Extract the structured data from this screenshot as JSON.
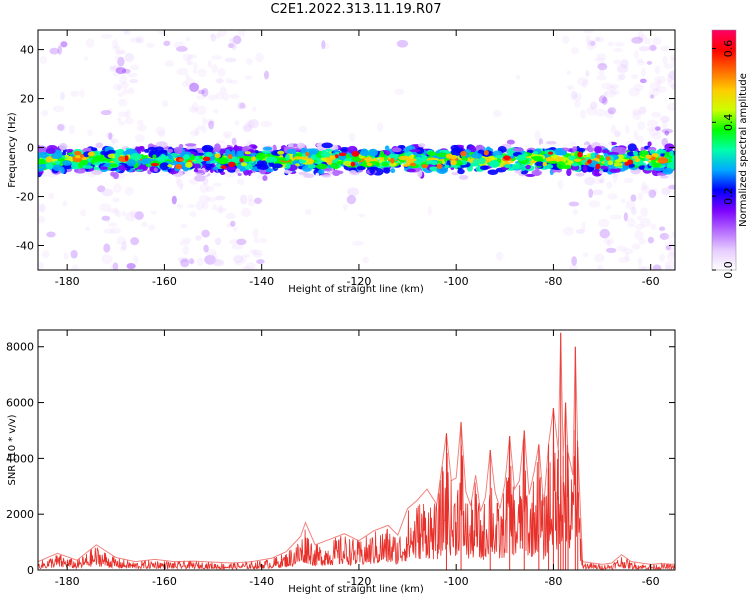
{
  "title": "C2E1.2022.313.11.19.R07",
  "chart_data": [
    {
      "type": "heatmap",
      "xlabel": "Height of straight line (km)",
      "ylabel": "Frequency (Hz)",
      "xlim": [
        -186,
        -55
      ],
      "ylim": [
        -50,
        48
      ],
      "x_ticks": [
        -180,
        -160,
        -140,
        -120,
        -100,
        -80,
        -60
      ],
      "y_ticks": [
        -40,
        -20,
        0,
        20,
        40
      ],
      "grid": false,
      "colorbar": {
        "label": "Normalized spectral amplitude",
        "range": [
          0,
          0.65
        ],
        "ticks": [
          0.0,
          0.2,
          0.4,
          0.6
        ],
        "colors": [
          "#ffffff",
          "#e6ccff",
          "#b366ff",
          "#7a00ff",
          "#0000ff",
          "#00aaff",
          "#00ffaa",
          "#00ff00",
          "#ccff00",
          "#ffcc00",
          "#ff6600",
          "#ff0000",
          "#ff0066"
        ]
      },
      "band": {
        "center_frequency_hz": -5,
        "half_width_hz": 6
      }
    },
    {
      "type": "line",
      "xlabel": "Height of straight line (km)",
      "ylabel": "SNR (10 * v/v)",
      "xlim": [
        -186,
        -55
      ],
      "ylim": [
        0,
        8600
      ],
      "x_ticks": [
        -180,
        -160,
        -140,
        -120,
        -100,
        -80,
        -60
      ],
      "y_ticks": [
        0,
        2000,
        4000,
        6000,
        8000
      ],
      "grid": false,
      "line_color": "#e8302a",
      "series": [
        {
          "x": [
            -186,
            -182,
            -178,
            -174,
            -170,
            -166,
            -162,
            -158,
            -154,
            -150,
            -146,
            -142,
            -138,
            -135,
            -132,
            -131,
            -129,
            -126,
            -123,
            -120,
            -117,
            -114,
            -112,
            -110,
            -108,
            -106,
            -104,
            -103,
            -102,
            -101,
            -100,
            -99,
            -98,
            -97,
            -96,
            -95,
            -94,
            -93,
            -92,
            -91,
            -90,
            -89,
            -88,
            -87,
            -86,
            -85,
            -84,
            -83,
            -82,
            -81,
            -80,
            -79,
            -78.5,
            -78,
            -77.5,
            -77,
            -76,
            -75.5,
            -75,
            -74,
            -72,
            -70,
            -68,
            -66,
            -64,
            -62,
            -60,
            -58,
            -55
          ],
          "y": [
            300,
            600,
            350,
            900,
            450,
            300,
            380,
            300,
            320,
            280,
            250,
            300,
            420,
            650,
            1200,
            1700,
            900,
            1100,
            1300,
            1050,
            1400,
            1600,
            1250,
            2200,
            2500,
            2900,
            2350,
            3600,
            4900,
            3200,
            3300,
            5300,
            2800,
            2300,
            3400,
            2100,
            2600,
            4300,
            2800,
            2200,
            3100,
            4800,
            2900,
            3200,
            5000,
            2700,
            3500,
            4500,
            2300,
            4500,
            5800,
            4300,
            8500,
            4100,
            6000,
            4200,
            3400,
            8000,
            4400,
            300,
            250,
            200,
            250,
            550,
            300,
            250,
            200,
            230,
            200
          ]
        }
      ]
    }
  ]
}
